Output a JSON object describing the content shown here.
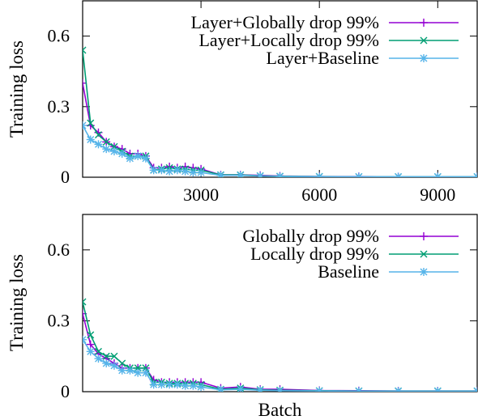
{
  "colors": {
    "globally": "#9400d3",
    "locally": "#009e73",
    "baseline": "#56b4e9"
  },
  "chart_data": [
    {
      "type": "line",
      "title": "",
      "xlabel": "",
      "ylabel": "Training loss",
      "xlim": [
        0,
        10000
      ],
      "ylim": [
        0,
        0.75
      ],
      "x_ticks": [
        3000,
        6000,
        9000
      ],
      "y_ticks": [
        0,
        0.3,
        0.6
      ],
      "x_tick_labels": [
        "3000",
        "6000",
        "9000"
      ],
      "y_tick_labels": [
        "0",
        "0.3",
        "0.6"
      ],
      "grid": false,
      "legend_position": "top-right",
      "series": [
        {
          "name": "Layer+Globally drop 99%",
          "color_key": "globally",
          "marker": "plus",
          "x": [
            0,
            200,
            400,
            600,
            800,
            1000,
            1200,
            1400,
            1600,
            1800,
            2000,
            2200,
            2400,
            2600,
            2800,
            3000,
            3500,
            4000,
            4500,
            5000,
            6000,
            7000,
            8000,
            9000,
            10000
          ],
          "y": [
            0.4,
            0.22,
            0.19,
            0.15,
            0.13,
            0.12,
            0.1,
            0.1,
            0.09,
            0.04,
            0.04,
            0.045,
            0.04,
            0.045,
            0.04,
            0.035,
            0.01,
            0.01,
            0.008,
            0.005,
            0.003,
            0.003,
            0.002,
            0.002,
            0.002
          ]
        },
        {
          "name": "Layer+Locally drop 99%",
          "color_key": "locally",
          "marker": "cross",
          "x": [
            0,
            200,
            400,
            600,
            800,
            1000,
            1200,
            1400,
            1600,
            1800,
            2000,
            2200,
            2400,
            2600,
            2800,
            3000,
            3500,
            4000,
            4500,
            5000,
            6000,
            7000,
            8000,
            9000,
            10000
          ],
          "y": [
            0.54,
            0.23,
            0.18,
            0.15,
            0.13,
            0.11,
            0.09,
            0.09,
            0.09,
            0.03,
            0.035,
            0.04,
            0.035,
            0.035,
            0.03,
            0.03,
            0.01,
            0.01,
            0.006,
            0.004,
            0.003,
            0.002,
            0.002,
            0.002,
            0.002
          ]
        },
        {
          "name": "Layer+Baseline",
          "color_key": "baseline",
          "marker": "star",
          "x": [
            0,
            200,
            400,
            600,
            800,
            1000,
            1200,
            1400,
            1600,
            1800,
            2000,
            2200,
            2400,
            2600,
            2800,
            3000,
            3500,
            4000,
            4500,
            5000,
            6000,
            7000,
            8000,
            9000,
            10000
          ],
          "y": [
            0.22,
            0.16,
            0.14,
            0.12,
            0.11,
            0.1,
            0.08,
            0.09,
            0.08,
            0.03,
            0.03,
            0.025,
            0.03,
            0.025,
            0.02,
            0.02,
            0.008,
            0.008,
            0.005,
            0.003,
            0.002,
            0.002,
            0.002,
            0.002,
            0.002
          ]
        }
      ]
    },
    {
      "type": "line",
      "title": "",
      "xlabel": "Batch",
      "ylabel": "Training loss",
      "xlim": [
        0,
        10000
      ],
      "ylim": [
        0,
        0.75
      ],
      "x_ticks": [],
      "y_ticks": [
        0,
        0.3,
        0.6
      ],
      "x_tick_labels": [],
      "y_tick_labels": [
        "0",
        "0.3",
        "0.6"
      ],
      "grid": false,
      "legend_position": "top-right",
      "series": [
        {
          "name": "Globally drop 99%",
          "color_key": "globally",
          "marker": "plus",
          "x": [
            0,
            200,
            400,
            600,
            800,
            1000,
            1200,
            1400,
            1600,
            1800,
            2000,
            2200,
            2400,
            2600,
            2800,
            3000,
            3500,
            4000,
            4500,
            5000,
            6000,
            7000,
            8000,
            9000,
            10000
          ],
          "y": [
            0.33,
            0.2,
            0.16,
            0.14,
            0.12,
            0.1,
            0.1,
            0.1,
            0.1,
            0.05,
            0.04,
            0.04,
            0.04,
            0.04,
            0.04,
            0.04,
            0.015,
            0.02,
            0.01,
            0.01,
            0.005,
            0.004,
            0.003,
            0.003,
            0.003
          ]
        },
        {
          "name": "Locally drop 99%",
          "color_key": "locally",
          "marker": "cross",
          "x": [
            0,
            200,
            400,
            600,
            800,
            1000,
            1200,
            1400,
            1600,
            1800,
            2000,
            2200,
            2400,
            2600,
            2800,
            3000,
            3500,
            4000,
            4500,
            5000,
            6000,
            7000,
            8000,
            9000,
            10000
          ],
          "y": [
            0.38,
            0.24,
            0.17,
            0.15,
            0.15,
            0.12,
            0.1,
            0.1,
            0.1,
            0.04,
            0.04,
            0.035,
            0.035,
            0.035,
            0.035,
            0.03,
            0.01,
            0.015,
            0.008,
            0.006,
            0.004,
            0.003,
            0.003,
            0.003,
            0.003
          ]
        },
        {
          "name": "Baseline",
          "color_key": "baseline",
          "marker": "star",
          "x": [
            0,
            200,
            400,
            600,
            800,
            1000,
            1200,
            1400,
            1600,
            1800,
            2000,
            2200,
            2400,
            2600,
            2800,
            3000,
            3500,
            4000,
            4500,
            5000,
            6000,
            7000,
            8000,
            9000,
            10000
          ],
          "y": [
            0.22,
            0.17,
            0.14,
            0.12,
            0.11,
            0.09,
            0.09,
            0.08,
            0.08,
            0.03,
            0.03,
            0.03,
            0.03,
            0.025,
            0.025,
            0.02,
            0.008,
            0.01,
            0.006,
            0.004,
            0.003,
            0.002,
            0.002,
            0.002,
            0.002
          ]
        }
      ]
    }
  ]
}
